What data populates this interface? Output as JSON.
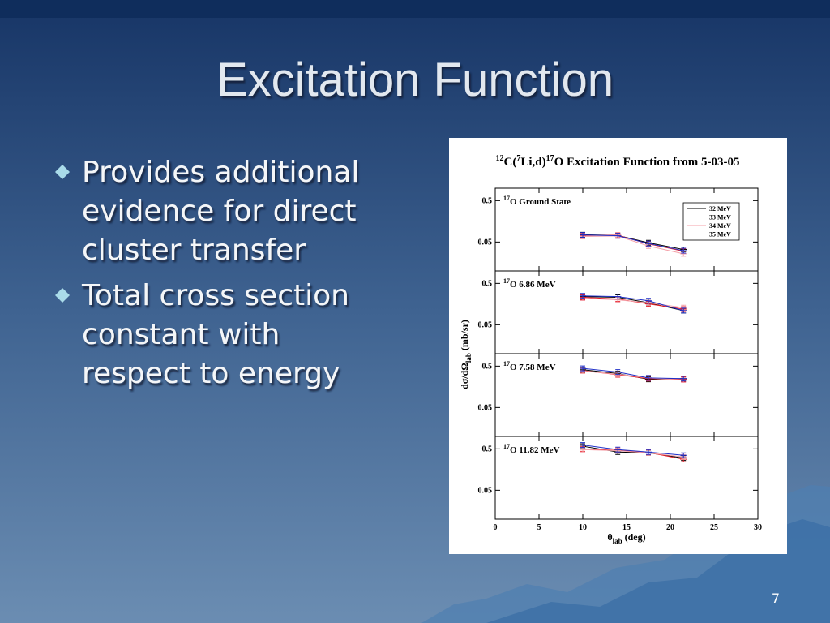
{
  "slide": {
    "title": "Excitation Function",
    "bullets": [
      [
        "Provides additional",
        "evidence for direct",
        "cluster transfer"
      ],
      [
        "Total cross section",
        "constant with",
        "respect to energy"
      ]
    ],
    "page_number": "7"
  },
  "chart_data": {
    "type": "line",
    "title_segments": [
      {
        "sup": "12"
      },
      {
        "text": "C("
      },
      {
        "sup": "7"
      },
      {
        "text": "Li,d)"
      },
      {
        "sup": "17"
      },
      {
        "text": "O Excitation Function from 5-03-05"
      }
    ],
    "xlabel": {
      "main": "θ",
      "sub": "lab",
      "rest": " (deg)"
    },
    "ylabel": {
      "main": "dσ/dΩ",
      "sub": "lab",
      "rest": " (mb/sr)"
    },
    "x": [
      10,
      14,
      17.5,
      21.5
    ],
    "xlim": [
      0,
      30
    ],
    "xticks": [
      0,
      5,
      10,
      15,
      20,
      25,
      30
    ],
    "ylim": [
      0.01,
      1
    ],
    "yticks": [
      0.05,
      0.5
    ],
    "log_y": true,
    "legend": "upper right",
    "series": [
      {
        "name": "32 MeV",
        "color": "#000000"
      },
      {
        "name": "33 MeV",
        "color": "#e8202a"
      },
      {
        "name": "34 MeV",
        "color": "#f4a0a8"
      },
      {
        "name": "35 MeV",
        "color": "#2030c8"
      }
    ],
    "panels": [
      {
        "label_sup": "17",
        "label": "O Ground State",
        "series_values": [
          [
            0.075,
            0.072,
            0.048,
            0.033
          ],
          [
            0.072,
            0.073,
            0.045,
            0.03
          ],
          [
            0.068,
            0.07,
            0.04,
            0.026
          ],
          [
            0.074,
            0.071,
            0.046,
            0.031
          ]
        ]
      },
      {
        "label_sup": "17",
        "label": "O 6.86 MeV",
        "series_values": [
          [
            0.24,
            0.23,
            0.17,
            0.11
          ],
          [
            0.23,
            0.21,
            0.16,
            0.12
          ],
          [
            0.22,
            0.2,
            0.17,
            0.13
          ],
          [
            0.25,
            0.24,
            0.19,
            0.11
          ]
        ]
      },
      {
        "label_sup": "17",
        "label": "O 7.58 MeV",
        "series_values": [
          [
            0.41,
            0.33,
            0.24,
            0.25
          ],
          [
            0.39,
            0.31,
            0.25,
            0.24
          ],
          [
            0.38,
            0.32,
            0.26,
            0.23
          ],
          [
            0.44,
            0.36,
            0.26,
            0.25
          ]
        ]
      },
      {
        "label_sup": "17",
        "label": "O 11.82 MeV",
        "series_values": [
          [
            0.58,
            0.42,
            0.4,
            0.3
          ],
          [
            0.5,
            0.46,
            0.41,
            0.28
          ],
          [
            0.48,
            0.45,
            0.4,
            0.32
          ],
          [
            0.62,
            0.48,
            0.42,
            0.35
          ]
        ]
      }
    ]
  }
}
